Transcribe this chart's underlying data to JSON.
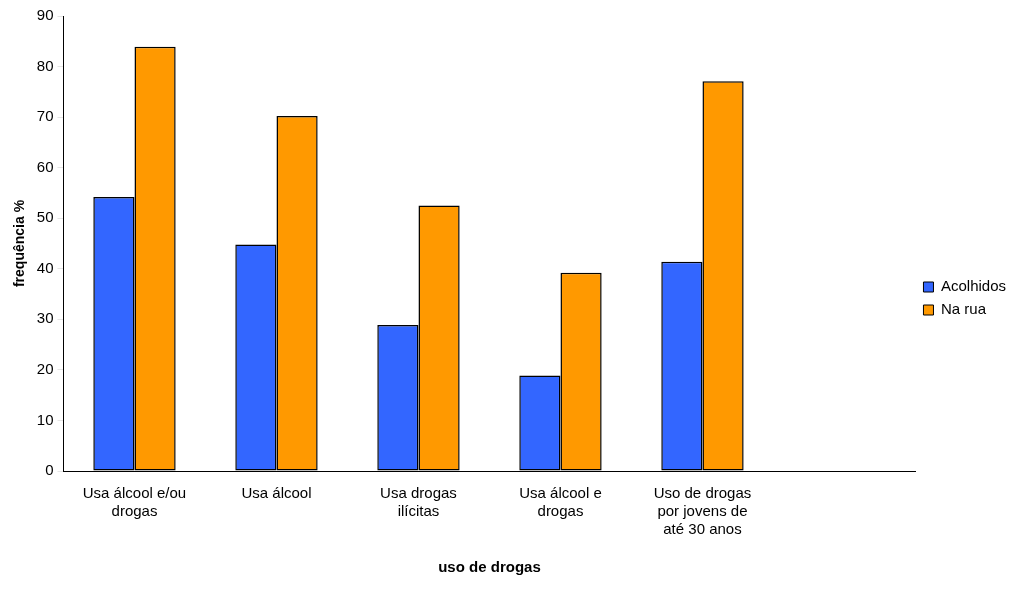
{
  "chart_data": {
    "type": "bar",
    "xlabel": "uso de drogas",
    "ylabel": "frequência %",
    "categories": [
      "Usa álcool e/ou drogas",
      "Usa álcool",
      "Usa drogas ilícitas",
      "Usa álcool e drogas",
      "Uso de drogas por jovens de até 30 anos",
      null
    ],
    "series": [
      {
        "name": "Acolhidos",
        "color": "#3366ff",
        "values": [
          54.2,
          44.8,
          28.9,
          18.9,
          41.4,
          null
        ]
      },
      {
        "name": "Na rua",
        "color": "#ff9900",
        "values": [
          83.9,
          70.2,
          52.5,
          39.2,
          77.1,
          null
        ]
      }
    ],
    "ylim": [
      0,
      90
    ],
    "yticks": [
      0,
      10,
      20,
      30,
      40,
      50,
      60,
      70,
      80,
      90
    ],
    "grid": false,
    "legend": "right"
  }
}
